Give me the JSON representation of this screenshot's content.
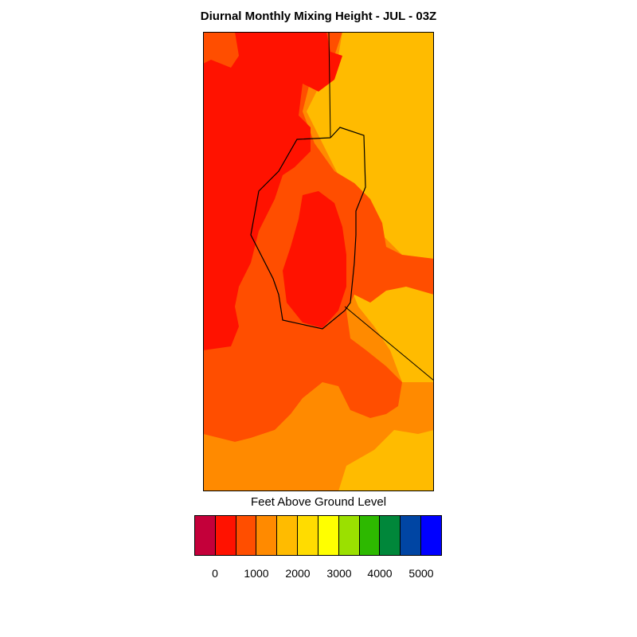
{
  "title": "Diurnal Monthly Mixing Height - JUL - 03Z",
  "legend": {
    "title": "Feet Above Ground Level",
    "colors": [
      "#c4003a",
      "#ff1200",
      "#ff4e00",
      "#ff8a00",
      "#ffbb00",
      "#ffdc00",
      "#ffff00",
      "#9be000",
      "#2db900",
      "#00873a",
      "#0045a3",
      "#0000ff"
    ],
    "tick_labels": [
      "0",
      "1000",
      "2000",
      "3000",
      "4000",
      "5000"
    ]
  },
  "map": {
    "fill_colors": {
      "red": "#ff1200",
      "red_orange": "#ff4e00",
      "orange": "#ff8a00",
      "light_orange": "#ffbb00"
    },
    "boundary_color": "#000000"
  }
}
